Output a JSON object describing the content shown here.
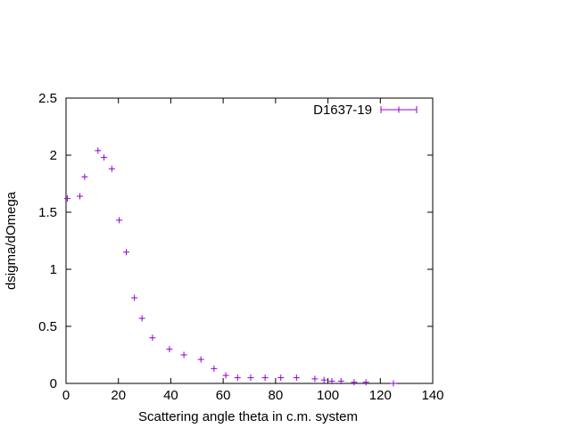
{
  "chart_data": {
    "type": "scatter",
    "xlabel": "Scattering angle theta in c.m. system",
    "ylabel": "dsigma/dOmega",
    "xlim": [
      0,
      140
    ],
    "ylim": [
      0,
      2.5
    ],
    "x_ticks": [
      "0",
      "20",
      "40",
      "60",
      "80",
      "100",
      "120",
      "140"
    ],
    "y_ticks": [
      "0",
      "0.5",
      "1",
      "1.5",
      "2",
      "2.5"
    ],
    "grid": false,
    "legend_position": "top-right",
    "series": [
      {
        "name": "D1637-19",
        "color": "#9400d3",
        "marker": "plus-with-errorbars",
        "points": [
          {
            "x": 0.5,
            "y": 1.62
          },
          {
            "x": 5.3,
            "y": 1.64
          },
          {
            "x": 7.1,
            "y": 1.81
          },
          {
            "x": 12.2,
            "y": 2.04
          },
          {
            "x": 14.5,
            "y": 1.98
          },
          {
            "x": 17.5,
            "y": 1.88
          },
          {
            "x": 20.3,
            "y": 1.43
          },
          {
            "x": 23.0,
            "y": 1.15
          },
          {
            "x": 26.1,
            "y": 0.75
          },
          {
            "x": 29.0,
            "y": 0.57
          },
          {
            "x": 33.0,
            "y": 0.4
          },
          {
            "x": 39.5,
            "y": 0.3
          },
          {
            "x": 45.0,
            "y": 0.25
          },
          {
            "x": 51.5,
            "y": 0.21
          },
          {
            "x": 56.5,
            "y": 0.13
          },
          {
            "x": 61.0,
            "y": 0.07
          },
          {
            "x": 65.5,
            "y": 0.05
          },
          {
            "x": 70.5,
            "y": 0.05
          },
          {
            "x": 76.0,
            "y": 0.05
          },
          {
            "x": 82.0,
            "y": 0.05
          },
          {
            "x": 88.0,
            "y": 0.05
          },
          {
            "x": 95.0,
            "y": 0.04
          },
          {
            "x": 98.5,
            "y": 0.03
          },
          {
            "x": 101.5,
            "y": 0.02
          },
          {
            "x": 105.0,
            "y": 0.02
          },
          {
            "x": 110.0,
            "y": 0.01
          },
          {
            "x": 114.5,
            "y": 0.01
          },
          {
            "x": 125.0,
            "y": 0.0
          }
        ]
      }
    ]
  }
}
